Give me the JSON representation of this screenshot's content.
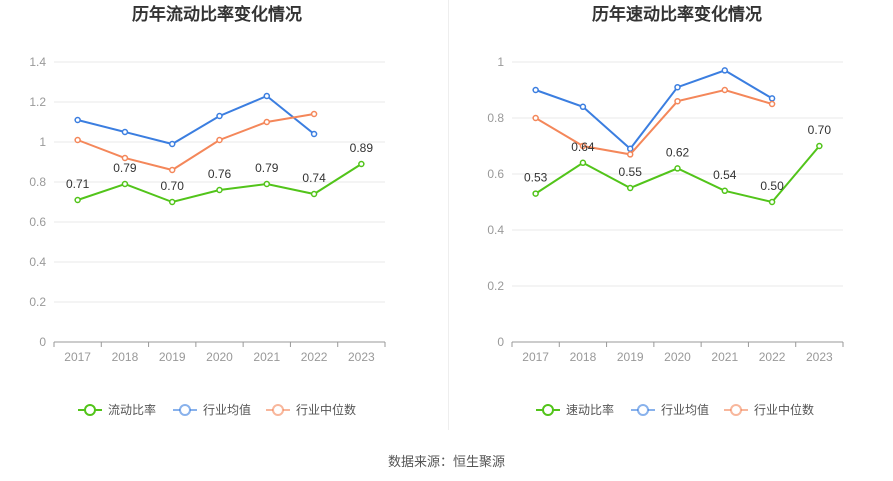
{
  "source_label": "数据来源：恒生聚源",
  "colors": {
    "primary": "#52c41a",
    "industry_avg": "#3b7ee0",
    "industry_median": "#f4875a",
    "grid": "#e8e8e8",
    "axis": "#999999"
  },
  "chart_data": [
    {
      "type": "line",
      "title": "历年流动比率变化情况",
      "categories": [
        "2017",
        "2018",
        "2019",
        "2020",
        "2021",
        "2022",
        "2023"
      ],
      "ylim": [
        0,
        1.4
      ],
      "yticks": [
        "0",
        "0.2",
        "0.4",
        "0.6",
        "0.8",
        "1",
        "1.2",
        "1.4"
      ],
      "grid": true,
      "legend_position": "bottom",
      "series": [
        {
          "name": "流动比率",
          "color": "#52c41a",
          "values": [
            0.71,
            0.79,
            0.7,
            0.76,
            0.79,
            0.74,
            0.89
          ],
          "labels": [
            "0.71",
            "0.79",
            "0.70",
            "0.76",
            "0.79",
            "0.74",
            "0.89"
          ]
        },
        {
          "name": "行业均值",
          "color": "#3b7ee0",
          "values": [
            1.11,
            1.05,
            0.99,
            1.13,
            1.23,
            1.04,
            null
          ]
        },
        {
          "name": "行业中位数",
          "color": "#f4875a",
          "values": [
            1.01,
            0.92,
            0.86,
            1.01,
            1.1,
            1.14,
            null
          ]
        }
      ]
    },
    {
      "type": "line",
      "title": "历年速动比率变化情况",
      "categories": [
        "2017",
        "2018",
        "2019",
        "2020",
        "2021",
        "2022",
        "2023"
      ],
      "ylim": [
        0,
        1
      ],
      "yticks": [
        "0",
        "0.2",
        "0.4",
        "0.6",
        "0.8",
        "1"
      ],
      "grid": true,
      "legend_position": "bottom",
      "series": [
        {
          "name": "速动比率",
          "color": "#52c41a",
          "values": [
            0.53,
            0.64,
            0.55,
            0.62,
            0.54,
            0.5,
            0.7
          ],
          "labels": [
            "0.53",
            "0.64",
            "0.55",
            "0.62",
            "0.54",
            "0.50",
            "0.70"
          ]
        },
        {
          "name": "行业均值",
          "color": "#3b7ee0",
          "values": [
            0.9,
            0.84,
            0.69,
            0.91,
            0.97,
            0.87,
            null
          ]
        },
        {
          "name": "行业中位数",
          "color": "#f4875a",
          "values": [
            0.8,
            0.7,
            0.67,
            0.86,
            0.9,
            0.85,
            null
          ]
        }
      ]
    }
  ]
}
